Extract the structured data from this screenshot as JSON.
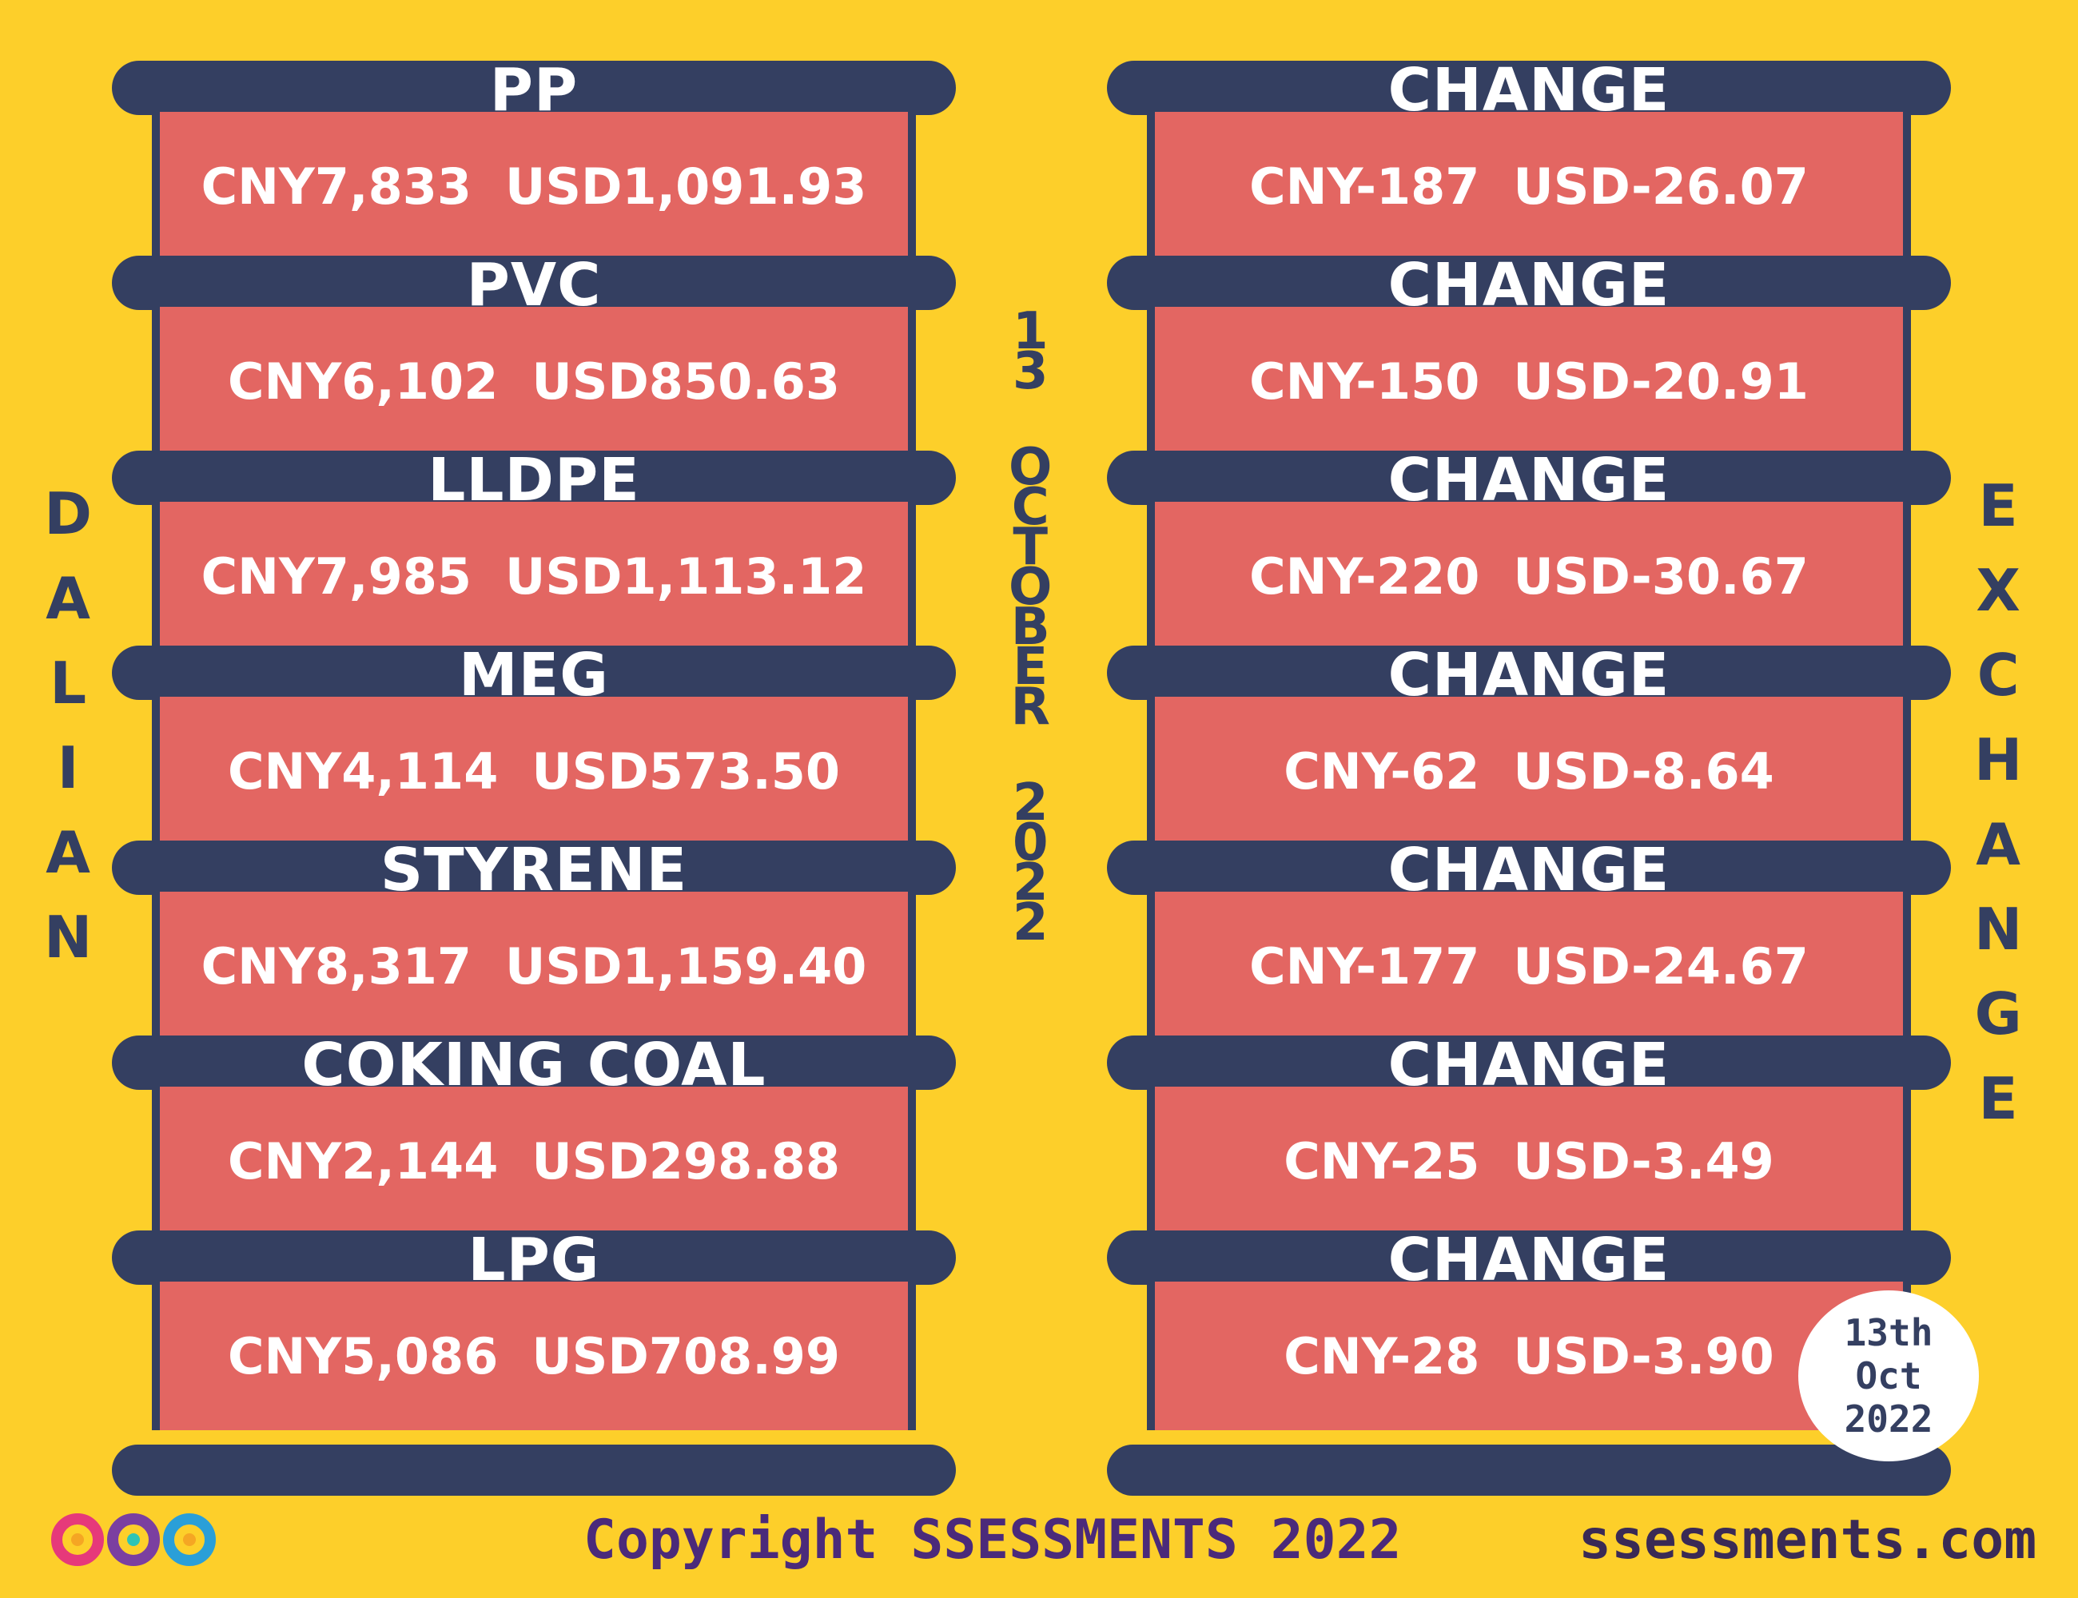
{
  "left_items": [
    {
      "name": "PP",
      "cny": "CNY7,833",
      "usd": "USD1,091.93"
    },
    {
      "name": "PVC",
      "cny": "CNY6,102",
      "usd": "USD850.63"
    },
    {
      "name": "LLDPE",
      "cny": "CNY7,985",
      "usd": "USD1,113.12"
    },
    {
      "name": "MEG",
      "cny": "CNY4,114",
      "usd": "USD573.50"
    },
    {
      "name": "STYRENE",
      "cny": "CNY8,317",
      "usd": "USD1,159.40"
    },
    {
      "name": "COKING COAL",
      "cny": "CNY2,144",
      "usd": "USD298.88"
    },
    {
      "name": "LPG",
      "cny": "CNY5,086",
      "usd": "USD708.99"
    }
  ],
  "right_items": [
    {
      "name": "CHANGE",
      "cny": "CNY-187",
      "usd": "USD-26.07"
    },
    {
      "name": "CHANGE",
      "cny": "CNY-150",
      "usd": "USD-20.91"
    },
    {
      "name": "CHANGE",
      "cny": "CNY-220",
      "usd": "USD-30.67"
    },
    {
      "name": "CHANGE",
      "cny": "CNY-62",
      "usd": "USD-8.64"
    },
    {
      "name": "CHANGE",
      "cny": "CNY-177",
      "usd": "USD-24.67"
    },
    {
      "name": "CHANGE",
      "cny": "CNY-25",
      "usd": "USD-3.49"
    },
    {
      "name": "CHANGE",
      "cny": "CNY-28",
      "usd": "USD-3.90"
    }
  ],
  "side_left": [
    "D",
    "A",
    "L",
    "I",
    "A",
    "N"
  ],
  "side_right": [
    "E",
    "X",
    "C",
    "H",
    "A",
    "N",
    "G",
    "E"
  ],
  "date_vertical": {
    "day": [
      "1",
      "3"
    ],
    "month": [
      "O",
      "C",
      "T",
      "O",
      "B",
      "E",
      "R"
    ],
    "year": [
      "2",
      "0",
      "2",
      "2"
    ]
  },
  "badge": {
    "line1": "13th",
    "line2": "Oct",
    "line3": "2022"
  },
  "footer": {
    "copyright": "Copyright SSESSMENTS 2022",
    "site": "ssessments.com"
  },
  "colors": {
    "background": "#FDCF2A",
    "bar": "#343F61",
    "panel": "#E36662"
  },
  "icons": {
    "logo": "ssessments-infinity-logo"
  }
}
